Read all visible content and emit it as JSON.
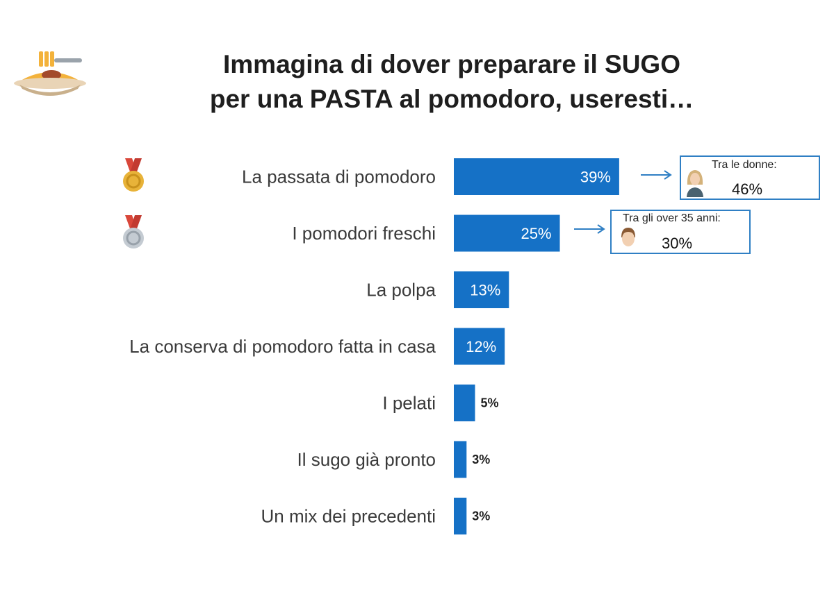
{
  "title": {
    "line1": "Immagina di dover preparare il SUGO",
    "line2": "per una PASTA al pomodoro, useresti…"
  },
  "colors": {
    "bar": "#1571c6",
    "callout_border": "#2f7fc4",
    "gold_medal": "#e8b339",
    "silver_medal": "#b9c0c7",
    "ribbon": "#d9473a"
  },
  "icons": {
    "header": "pasta-plate-icon",
    "rank1": "gold-medal-icon",
    "rank2": "silver-medal-icon",
    "callout1": "woman-avatar-icon",
    "callout2": "man-avatar-icon"
  },
  "chart_data": {
    "type": "bar",
    "orientation": "horizontal",
    "title": "Immagina di dover preparare il SUGO per una PASTA al pomodoro, useresti…",
    "categories": [
      "La passata di pomodoro",
      "I pomodori freschi",
      "La polpa",
      "La conserva di pomodoro fatta in casa",
      "I pelati",
      "Il sugo già pronto",
      "Un mix dei precedenti"
    ],
    "values": [
      39,
      25,
      13,
      12,
      5,
      3,
      3
    ],
    "value_labels": [
      "39%",
      "25%",
      "13%",
      "12%",
      "5%",
      "3%",
      "3%"
    ],
    "unit": "%",
    "xlim": [
      0,
      100
    ],
    "grid": false,
    "legend": "none"
  },
  "callouts": [
    {
      "caption": "Tra le donne:",
      "value": "46%"
    },
    {
      "caption": "Tra gli over 35 anni:",
      "value": "30%"
    }
  ]
}
